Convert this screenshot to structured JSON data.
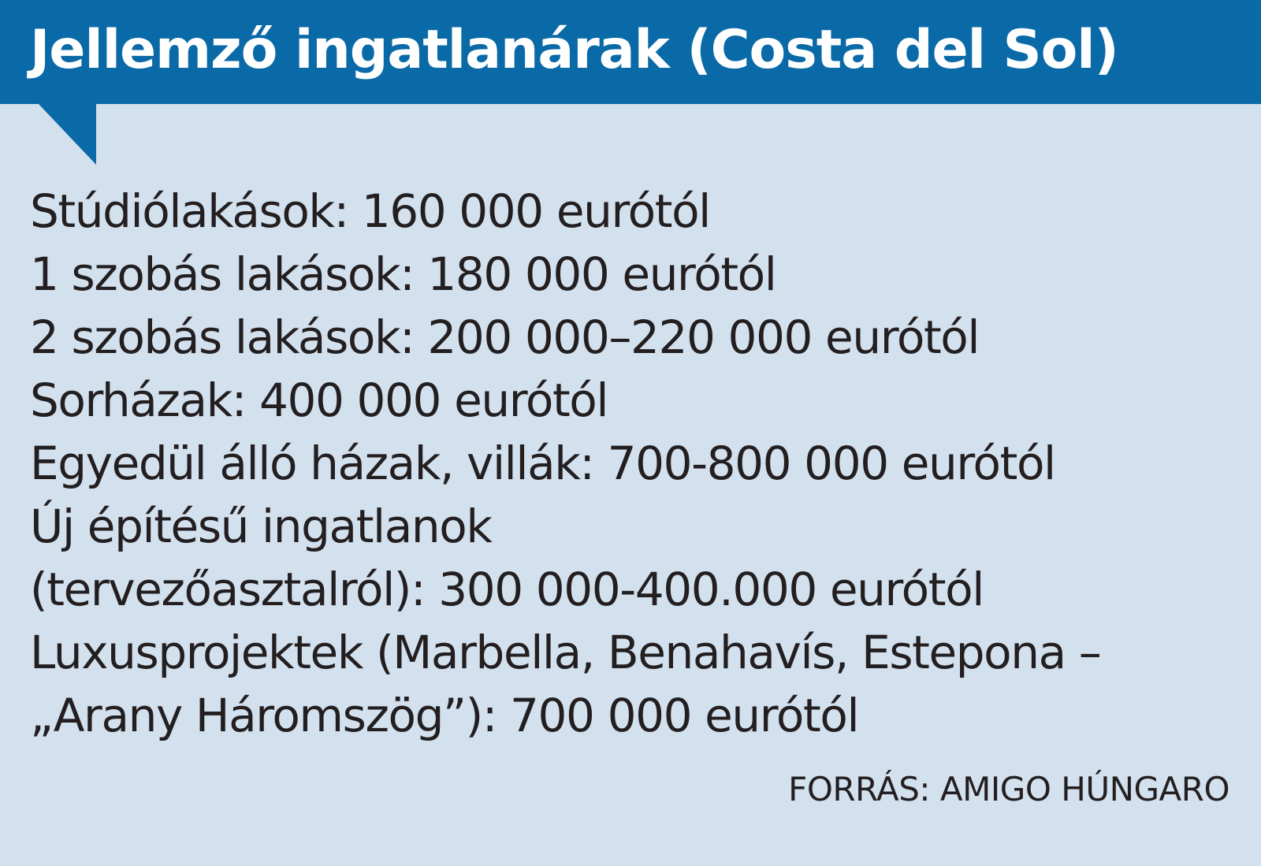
{
  "header": {
    "title": "Jellemző ingatlanárak (Costa del Sol)"
  },
  "lines": [
    "Stúdiólakások: 160 000 eurótól",
    "1 szobás lakások: 180 000 eurótól",
    "2 szobás lakások: 200 000–220 000 eurótól",
    "Sorházak: 400 000 eurótól",
    "Egyedül álló házak, villák: 700-800 000 eurótól",
    "Új építésű ingatlanok",
    "(tervezőasztalról): 300 000-400.000 eurótól",
    "Luxusprojektek (Marbella, Benahavís, Estepona –",
    "„Arany Háromszög”): 700 000 eurótól"
  ],
  "footer": {
    "source": "FORRÁS: AMIGO HÚNGARO"
  },
  "colors": {
    "header_background": "#0a6aa8",
    "header_text": "#ffffff",
    "box_background": "#d3e0ee",
    "body_text": "#231f20"
  }
}
